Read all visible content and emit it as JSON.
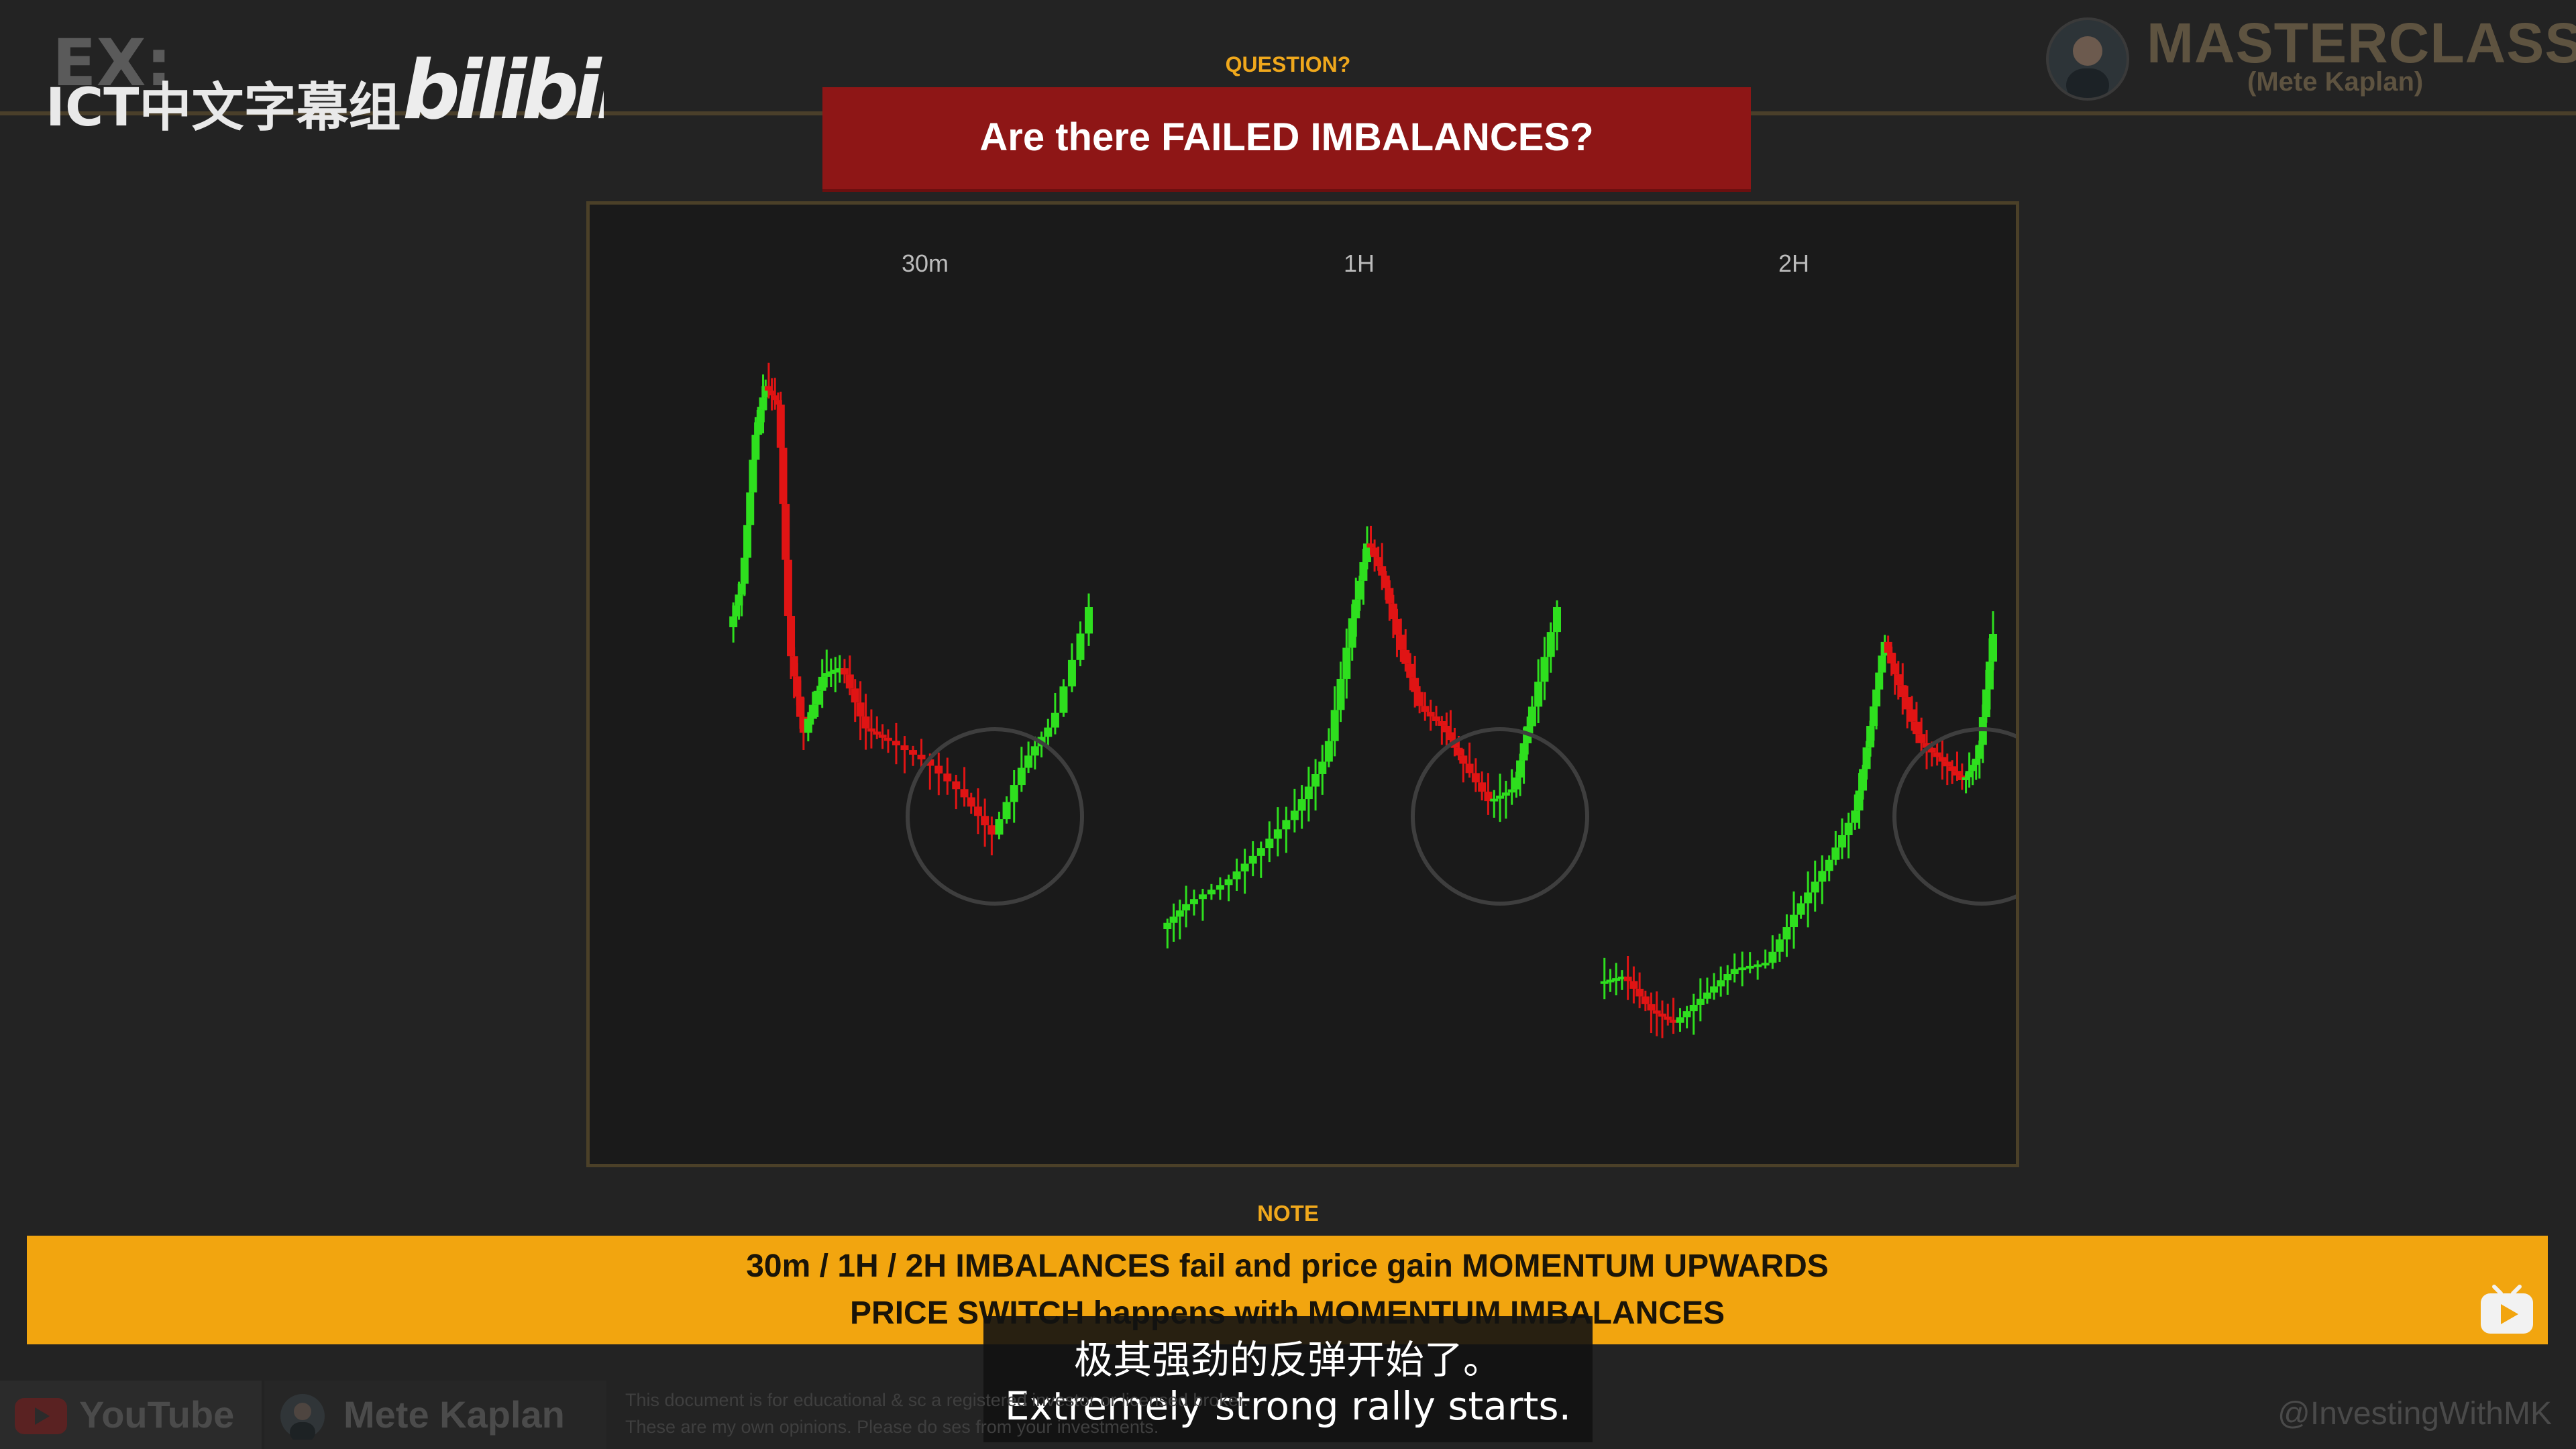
{
  "watermark": {
    "ex": "EX:",
    "group": "ICT中文字幕组",
    "logo": "bilibili"
  },
  "header": {
    "question_label": "QUESTION?",
    "title": "Are there FAILED IMBALANCES?",
    "brand": "MASTERCLASS",
    "brand_sub": "(Mete Kaplan)"
  },
  "charts": {
    "panel_labels": [
      "30m",
      "1H",
      "2H"
    ],
    "bull_color": "#2edf1e",
    "bear_color": "#e01414"
  },
  "note": {
    "label": "NOTE",
    "line1": "30m / 1H / 2H IMBALANCES fail and price gain MOMENTUM UPWARDS",
    "line2": "PRICE SWITCH happens with MOMENTUM IMBALANCES"
  },
  "subtitles": {
    "zh": "极其强劲的反弹开始了。",
    "en": "Extremely strong rally starts."
  },
  "footer": {
    "youtube": "YouTube",
    "channel": "Mete Kaplan",
    "disclaimer_1": "This document is for educational & sc                                                                                                    a registered investor or licensed broker.",
    "disclaimer_2": "These are my own opinions. Please do                                                                                                     ses from your investments.",
    "handle": "@InvestingWithMK"
  },
  "icons": [
    "bilibili-logo",
    "avatar",
    "youtube-icon",
    "bilibili-tv-icon"
  ]
}
